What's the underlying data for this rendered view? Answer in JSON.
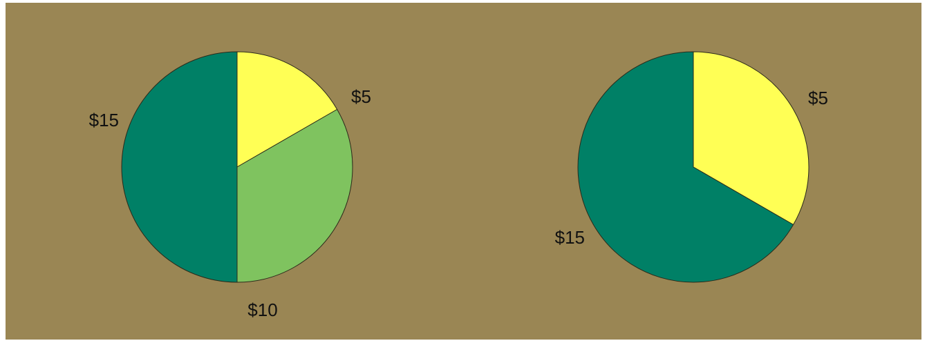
{
  "chart_data": [
    {
      "type": "pie",
      "slices": [
        {
          "label": "$5",
          "value": 5,
          "color": "#ffff55"
        },
        {
          "label": "$10",
          "value": 10,
          "color": "#7fc35f"
        },
        {
          "label": "$15",
          "value": 15,
          "color": "#008066"
        }
      ]
    },
    {
      "type": "pie",
      "slices": [
        {
          "label": "$5",
          "value": 5,
          "color": "#ffff55"
        },
        {
          "label": "$15",
          "value": 10,
          "color": "#008066"
        }
      ]
    }
  ],
  "colors": {
    "panel_background": "#9a8654"
  }
}
